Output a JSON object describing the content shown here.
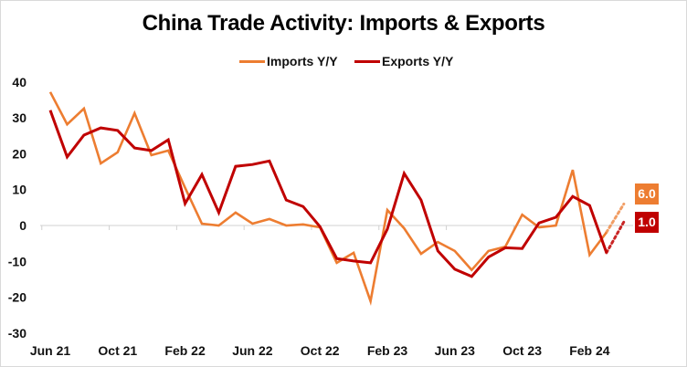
{
  "chart_data": {
    "type": "line",
    "title": "China Trade Activity: Imports & Exports",
    "xlabel": "",
    "ylabel": "",
    "ylim": [
      -30,
      40
    ],
    "yticks": [
      40,
      30,
      20,
      10,
      0,
      -10,
      -20,
      -30
    ],
    "xtick_labels": [
      "Jun 21",
      "Oct 21",
      "Feb 22",
      "Jun 22",
      "Oct 22",
      "Feb 23",
      "Jun 23",
      "Oct 23",
      "Feb 24"
    ],
    "grid": false,
    "legend_position": "top",
    "x": [
      "Jun 21",
      "Jul 21",
      "Aug 21",
      "Sep 21",
      "Oct 21",
      "Nov 21",
      "Dec 21",
      "Jan 22",
      "Feb 22",
      "Mar 22",
      "Apr 22",
      "May 22",
      "Jun 22",
      "Jul 22",
      "Aug 22",
      "Sep 22",
      "Oct 22",
      "Nov 22",
      "Dec 22",
      "Jan 23",
      "Feb 23",
      "Mar 23",
      "Apr 23",
      "May 23",
      "Jun 23",
      "Jul 23",
      "Aug 23",
      "Sep 23",
      "Oct 23",
      "Nov 23",
      "Dec 23",
      "Jan 24",
      "Feb 24",
      "Mar 24"
    ],
    "series": [
      {
        "name": "Imports Y/Y",
        "color": "#ED7D31",
        "values": [
          37.2,
          28.2,
          32.6,
          17.3,
          20.4,
          31.3,
          19.6,
          20.9,
          10.5,
          0.5,
          0.0,
          3.6,
          0.5,
          1.8,
          0.0,
          0.3,
          -0.5,
          -10.4,
          -7.6,
          -21.1,
          4.3,
          -0.8,
          -7.9,
          -4.6,
          -7.1,
          -12.4,
          -7.1,
          -5.9,
          3.0,
          -0.5,
          0.0,
          15.5,
          -8.2,
          -1.9
        ],
        "forecast": {
          "label": "6.0",
          "value": 6.0
        }
      },
      {
        "name": "Exports Y/Y",
        "color": "#C00000",
        "values": [
          32.1,
          19.1,
          25.2,
          27.2,
          26.5,
          21.6,
          20.9,
          23.9,
          6.1,
          14.2,
          3.6,
          16.5,
          17.0,
          18.0,
          7.1,
          5.3,
          -0.3,
          -9.2,
          -9.9,
          -10.4,
          -1.0,
          14.5,
          7.1,
          -7.1,
          -12.2,
          -14.2,
          -8.8,
          -6.2,
          -6.4,
          0.7,
          2.3,
          8.1,
          5.6,
          -7.6
        ],
        "forecast": {
          "label": "1.0",
          "value": 1.0
        }
      }
    ]
  },
  "legend": {
    "imports_label": "Imports Y/Y",
    "exports_label": "Exports Y/Y"
  },
  "badges": {
    "imports": "6.0",
    "exports": "1.0"
  }
}
